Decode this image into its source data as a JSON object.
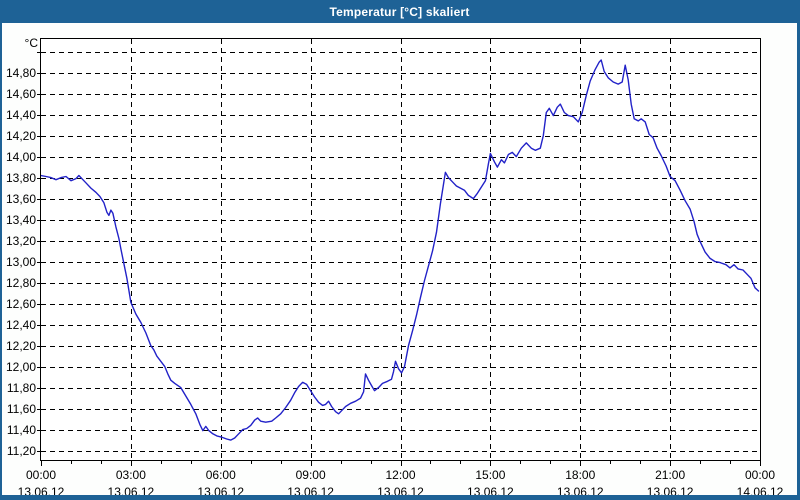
{
  "window": {
    "title": "Temperatur [°C] skaliert"
  },
  "colors": {
    "frame": "#1e6296",
    "titlebar_bg": "#1e6296",
    "title_text": "#ffffff",
    "plot_bg": "#ffffff",
    "grid": "#000000",
    "axis_text": "#000000",
    "line": "#2222c8"
  },
  "chart_data": {
    "type": "line",
    "title": "Temperatur [°C] skaliert",
    "ylabel": "°C",
    "xlabel": "",
    "grid": "dashed",
    "legend": "none",
    "ylim": [
      11.11,
      15.12
    ],
    "x_range_minutes": [
      0,
      1440
    ],
    "x_minor_step_minutes": 60,
    "y_ticks": [
      {
        "v": 15.0,
        "label": ""
      },
      {
        "v": 14.8,
        "label": "14,80"
      },
      {
        "v": 14.6,
        "label": "14,60"
      },
      {
        "v": 14.4,
        "label": "14,40"
      },
      {
        "v": 14.2,
        "label": "14,20"
      },
      {
        "v": 14.0,
        "label": "14,00"
      },
      {
        "v": 13.8,
        "label": "13,80"
      },
      {
        "v": 13.6,
        "label": "13,60"
      },
      {
        "v": 13.4,
        "label": "13,40"
      },
      {
        "v": 13.2,
        "label": "13,20"
      },
      {
        "v": 13.0,
        "label": "13,00"
      },
      {
        "v": 12.8,
        "label": "12,80"
      },
      {
        "v": 12.6,
        "label": "12,60"
      },
      {
        "v": 12.4,
        "label": "12,40"
      },
      {
        "v": 12.2,
        "label": "12,20"
      },
      {
        "v": 12.0,
        "label": "12,00"
      },
      {
        "v": 11.8,
        "label": "11,80"
      },
      {
        "v": 11.6,
        "label": "11,60"
      },
      {
        "v": 11.4,
        "label": "11,40"
      },
      {
        "v": 11.2,
        "label": "11,20"
      }
    ],
    "x_ticks": [
      {
        "h": 0,
        "time": "00:00",
        "date": "13.06.12"
      },
      {
        "h": 3,
        "time": "03:00",
        "date": "13.06.12"
      },
      {
        "h": 6,
        "time": "06:00",
        "date": "13.06.12"
      },
      {
        "h": 9,
        "time": "09:00",
        "date": "13.06.12"
      },
      {
        "h": 12,
        "time": "12:00",
        "date": "13.06.12"
      },
      {
        "h": 15,
        "time": "15:00",
        "date": "13.06.12"
      },
      {
        "h": 18,
        "time": "18:00",
        "date": "13.06.12"
      },
      {
        "h": 21,
        "time": "21:00",
        "date": "13.06.12"
      },
      {
        "h": 24,
        "time": "00:00",
        "date": "14.06.12"
      }
    ],
    "series": [
      {
        "name": "Temperatur",
        "color": "#2222c8",
        "points": [
          [
            0,
            13.82
          ],
          [
            10,
            13.81
          ],
          [
            20,
            13.8
          ],
          [
            30,
            13.78
          ],
          [
            40,
            13.8
          ],
          [
            50,
            13.81
          ],
          [
            60,
            13.77
          ],
          [
            70,
            13.79
          ],
          [
            76,
            13.82
          ],
          [
            84,
            13.78
          ],
          [
            90,
            13.75
          ],
          [
            100,
            13.7
          ],
          [
            110,
            13.66
          ],
          [
            118,
            13.62
          ],
          [
            126,
            13.56
          ],
          [
            132,
            13.47
          ],
          [
            136,
            13.44
          ],
          [
            140,
            13.49
          ],
          [
            144,
            13.46
          ],
          [
            150,
            13.33
          ],
          [
            156,
            13.22
          ],
          [
            160,
            13.12
          ],
          [
            166,
            12.98
          ],
          [
            172,
            12.84
          ],
          [
            180,
            12.61
          ],
          [
            190,
            12.5
          ],
          [
            200,
            12.42
          ],
          [
            210,
            12.32
          ],
          [
            220,
            12.2
          ],
          [
            226,
            12.16
          ],
          [
            232,
            12.1
          ],
          [
            240,
            12.05
          ],
          [
            248,
            12.0
          ],
          [
            254,
            11.93
          ],
          [
            260,
            11.87
          ],
          [
            268,
            11.84
          ],
          [
            280,
            11.8
          ],
          [
            290,
            11.72
          ],
          [
            300,
            11.64
          ],
          [
            310,
            11.55
          ],
          [
            318,
            11.45
          ],
          [
            324,
            11.39
          ],
          [
            330,
            11.43
          ],
          [
            336,
            11.39
          ],
          [
            344,
            11.36
          ],
          [
            352,
            11.34
          ],
          [
            360,
            11.33
          ],
          [
            372,
            11.31
          ],
          [
            380,
            11.3
          ],
          [
            388,
            11.32
          ],
          [
            396,
            11.36
          ],
          [
            404,
            11.4
          ],
          [
            412,
            11.41
          ],
          [
            420,
            11.44
          ],
          [
            428,
            11.49
          ],
          [
            434,
            11.51
          ],
          [
            440,
            11.48
          ],
          [
            450,
            11.47
          ],
          [
            462,
            11.48
          ],
          [
            470,
            11.51
          ],
          [
            480,
            11.55
          ],
          [
            490,
            11.61
          ],
          [
            500,
            11.68
          ],
          [
            508,
            11.75
          ],
          [
            516,
            11.81
          ],
          [
            524,
            11.85
          ],
          [
            532,
            11.83
          ],
          [
            540,
            11.77
          ],
          [
            548,
            11.71
          ],
          [
            556,
            11.66
          ],
          [
            564,
            11.63
          ],
          [
            570,
            11.64
          ],
          [
            576,
            11.67
          ],
          [
            582,
            11.62
          ],
          [
            590,
            11.57
          ],
          [
            596,
            11.55
          ],
          [
            602,
            11.58
          ],
          [
            610,
            11.62
          ],
          [
            620,
            11.65
          ],
          [
            630,
            11.67
          ],
          [
            640,
            11.7
          ],
          [
            646,
            11.76
          ],
          [
            650,
            11.93
          ],
          [
            656,
            11.87
          ],
          [
            662,
            11.82
          ],
          [
            668,
            11.77
          ],
          [
            676,
            11.8
          ],
          [
            684,
            11.84
          ],
          [
            694,
            11.86
          ],
          [
            702,
            11.88
          ],
          [
            706,
            11.95
          ],
          [
            710,
            12.05
          ],
          [
            716,
            11.98
          ],
          [
            722,
            11.94
          ],
          [
            728,
            12.0
          ],
          [
            736,
            12.2
          ],
          [
            744,
            12.34
          ],
          [
            752,
            12.49
          ],
          [
            760,
            12.66
          ],
          [
            768,
            12.82
          ],
          [
            776,
            12.96
          ],
          [
            784,
            13.1
          ],
          [
            792,
            13.28
          ],
          [
            800,
            13.55
          ],
          [
            806,
            13.73
          ],
          [
            810,
            13.85
          ],
          [
            816,
            13.8
          ],
          [
            824,
            13.76
          ],
          [
            832,
            13.72
          ],
          [
            840,
            13.7
          ],
          [
            848,
            13.68
          ],
          [
            856,
            13.63
          ],
          [
            866,
            13.6
          ],
          [
            874,
            13.65
          ],
          [
            882,
            13.71
          ],
          [
            890,
            13.77
          ],
          [
            896,
            13.93
          ],
          [
            900,
            14.03
          ],
          [
            908,
            13.95
          ],
          [
            914,
            13.9
          ],
          [
            922,
            13.97
          ],
          [
            928,
            13.94
          ],
          [
            936,
            14.02
          ],
          [
            944,
            14.04
          ],
          [
            952,
            14.0
          ],
          [
            962,
            14.08
          ],
          [
            972,
            14.13
          ],
          [
            982,
            14.08
          ],
          [
            990,
            14.06
          ],
          [
            1000,
            14.08
          ],
          [
            1006,
            14.2
          ],
          [
            1012,
            14.42
          ],
          [
            1018,
            14.46
          ],
          [
            1026,
            14.39
          ],
          [
            1034,
            14.47
          ],
          [
            1040,
            14.5
          ],
          [
            1048,
            14.42
          ],
          [
            1056,
            14.39
          ],
          [
            1066,
            14.38
          ],
          [
            1076,
            14.33
          ],
          [
            1084,
            14.42
          ],
          [
            1092,
            14.58
          ],
          [
            1100,
            14.72
          ],
          [
            1110,
            14.83
          ],
          [
            1118,
            14.9
          ],
          [
            1122,
            14.92
          ],
          [
            1128,
            14.81
          ],
          [
            1136,
            14.75
          ],
          [
            1146,
            14.71
          ],
          [
            1156,
            14.69
          ],
          [
            1164,
            14.71
          ],
          [
            1170,
            14.87
          ],
          [
            1176,
            14.73
          ],
          [
            1182,
            14.5
          ],
          [
            1188,
            14.36
          ],
          [
            1196,
            14.34
          ],
          [
            1202,
            14.36
          ],
          [
            1210,
            14.33
          ],
          [
            1218,
            14.21
          ],
          [
            1226,
            14.18
          ],
          [
            1234,
            14.08
          ],
          [
            1242,
            14.01
          ],
          [
            1252,
            13.91
          ],
          [
            1260,
            13.81
          ],
          [
            1270,
            13.77
          ],
          [
            1280,
            13.68
          ],
          [
            1290,
            13.58
          ],
          [
            1300,
            13.5
          ],
          [
            1308,
            13.38
          ],
          [
            1314,
            13.26
          ],
          [
            1320,
            13.19
          ],
          [
            1330,
            13.09
          ],
          [
            1340,
            13.03
          ],
          [
            1350,
            13.0
          ],
          [
            1360,
            12.99
          ],
          [
            1372,
            12.97
          ],
          [
            1380,
            12.94
          ],
          [
            1388,
            12.97
          ],
          [
            1396,
            12.93
          ],
          [
            1406,
            12.92
          ],
          [
            1414,
            12.88
          ],
          [
            1422,
            12.84
          ],
          [
            1430,
            12.75
          ],
          [
            1437,
            12.72
          ]
        ]
      }
    ]
  }
}
